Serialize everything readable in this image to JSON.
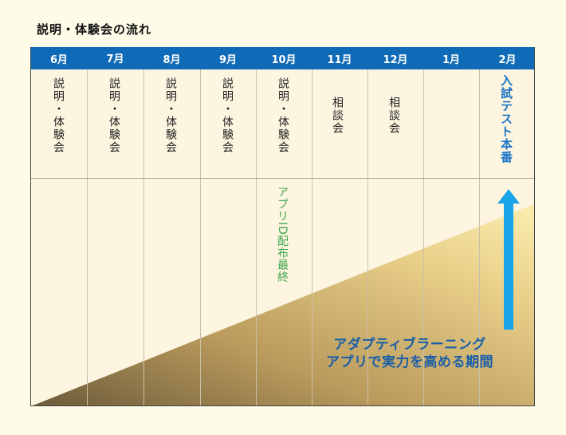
{
  "title": "説明・体験会の流れ",
  "months": [
    "6月",
    "7月",
    "8月",
    "9月",
    "10月",
    "11月",
    "12月",
    "1月",
    "2月"
  ],
  "events": {
    "jun": "説明・体験会",
    "jul": "説明・体験会",
    "aug": "説明・体験会",
    "sep": "説明・体験会",
    "oct": "説明・体験会",
    "nov": "相談会",
    "dec": "相談会",
    "feb": "入試テスト本番"
  },
  "note_oct": "アプリID配布最終",
  "banner": {
    "line1": "アダプティブラーニング",
    "line2": "アプリで実力を高める期間"
  },
  "colors": {
    "header": "#0f6ab7",
    "arrow": "#19a6e8",
    "exam_text": "#1a73c7",
    "note_text": "#3aa64a",
    "banner_text": "#1a5ea8"
  },
  "icons": {
    "period_arrow": "up-arrow-icon"
  }
}
